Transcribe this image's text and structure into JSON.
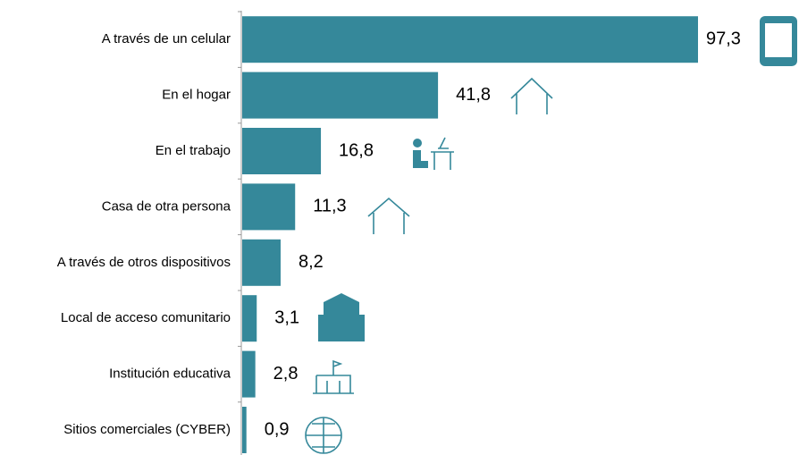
{
  "chart_data": {
    "type": "barh",
    "categories": [
      "A través de un celular",
      "En el hogar",
      "En el trabajo",
      "Casa de otra persona",
      "A través de otros dispositivos",
      "Local de acceso comunitario",
      "Institución educativa",
      "Sitios comerciales (CYBER)"
    ],
    "values": [
      97.3,
      41.8,
      16.8,
      11.3,
      8.2,
      3.1,
      2.8,
      0.9
    ],
    "value_labels": [
      "97,3",
      "41,8",
      "16,8",
      "11,3",
      "8,2",
      "3,1",
      "2,8",
      "0,9"
    ],
    "color": "#35889a"
  }
}
